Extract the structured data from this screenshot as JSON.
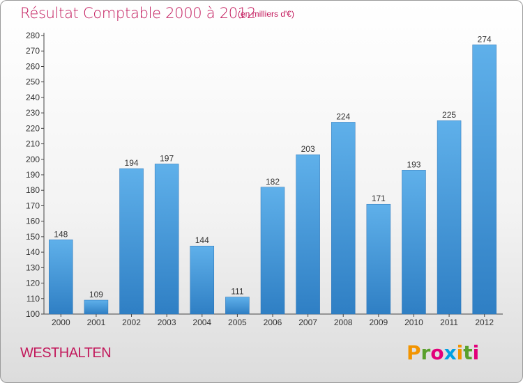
{
  "chart_data": {
    "type": "bar",
    "title": "Résultat Comptable 2000 à 2012",
    "subtitle": "(en milliers d'€)",
    "categories": [
      "2000",
      "2001",
      "2002",
      "2003",
      "2004",
      "2005",
      "2006",
      "2007",
      "2008",
      "2009",
      "2010",
      "2011",
      "2012"
    ],
    "values": [
      148,
      109,
      194,
      197,
      144,
      111,
      182,
      203,
      224,
      171,
      193,
      225,
      274
    ],
    "ylim": [
      100,
      280
    ],
    "ytick_step": 10,
    "xlabel": "",
    "ylabel": "",
    "grid": false,
    "bar_color": "#3d8fd6"
  },
  "footer": {
    "commune": "WESTHALTEN",
    "logo_letters": [
      "P",
      "r",
      "o",
      "x",
      "i",
      "t",
      "i"
    ],
    "logo_colors": [
      "#f29400",
      "#5aa02c",
      "#e2007a",
      "#00a0e3",
      "#f29400",
      "#5aa02c",
      "#e2007a"
    ]
  }
}
